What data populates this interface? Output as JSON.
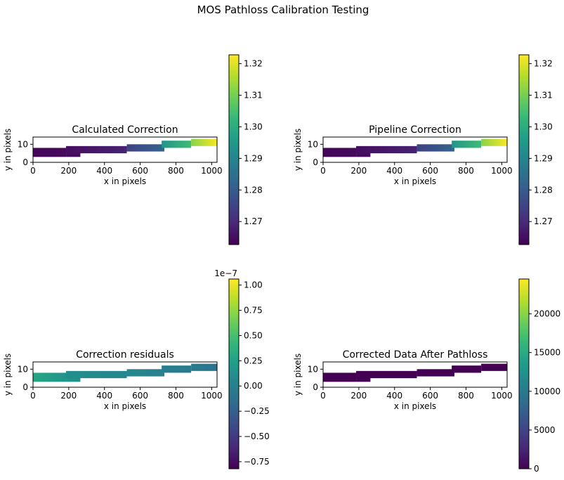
{
  "figure": {
    "suptitle": "MOS Pathloss Calibration Testing"
  },
  "colormap": {
    "name": "viridis",
    "stops": [
      "#440154",
      "#482878",
      "#3e4989",
      "#31688e",
      "#26828e",
      "#1f9e89",
      "#35b779",
      "#6ece58",
      "#b5de2b",
      "#fde725"
    ]
  },
  "chart_data": [
    {
      "type": "heatmap",
      "title": "Calculated Correction",
      "xlabel": "x in pixels",
      "ylabel": "y in pixels",
      "xlim": [
        0,
        1030
      ],
      "ylim": [
        0,
        14
      ],
      "x_ticks": [
        "0",
        "200",
        "400",
        "600",
        "800",
        "1000"
      ],
      "y_ticks": [
        "0",
        "10"
      ],
      "colorbar": {
        "min": 1.2627,
        "max": 1.3228,
        "ticks": [
          "1.27",
          "1.28",
          "1.29",
          "1.30",
          "1.31",
          "1.32"
        ],
        "tick_values": [
          1.27,
          1.28,
          1.29,
          1.3,
          1.31,
          1.32
        ],
        "offset_label": ""
      },
      "segments": [
        {
          "x": [
            0,
            185
          ],
          "y": [
            3,
            8
          ],
          "v": [
            1.2635,
            1.2642
          ]
        },
        {
          "x": [
            185,
            265
          ],
          "y": [
            3,
            8
          ],
          "v": [
            1.2642,
            1.2648
          ]
        },
        {
          "x": [
            185,
            525
          ],
          "y": [
            5,
            9
          ],
          "v": [
            1.2648,
            1.2685
          ]
        },
        {
          "x": [
            525,
            735
          ],
          "y": [
            6,
            10
          ],
          "v": [
            1.2745,
            1.282
          ]
        },
        {
          "x": [
            720,
            885
          ],
          "y": [
            8,
            12
          ],
          "v": [
            1.294,
            1.304
          ]
        },
        {
          "x": [
            885,
            1030
          ],
          "y": [
            9,
            13
          ],
          "v": [
            1.312,
            1.3225
          ]
        }
      ]
    },
    {
      "type": "heatmap",
      "title": "Pipeline Correction",
      "xlabel": "x in pixels",
      "ylabel": "y in pixels",
      "xlim": [
        0,
        1030
      ],
      "ylim": [
        0,
        14
      ],
      "x_ticks": [
        "0",
        "200",
        "400",
        "600",
        "800",
        "1000"
      ],
      "y_ticks": [
        "0",
        "10"
      ],
      "colorbar": {
        "min": 1.2627,
        "max": 1.3228,
        "ticks": [
          "1.27",
          "1.28",
          "1.29",
          "1.30",
          "1.31",
          "1.32"
        ],
        "tick_values": [
          1.27,
          1.28,
          1.29,
          1.3,
          1.31,
          1.32
        ],
        "offset_label": ""
      },
      "segments": [
        {
          "x": [
            0,
            185
          ],
          "y": [
            3,
            8
          ],
          "v": [
            1.2635,
            1.2642
          ]
        },
        {
          "x": [
            185,
            265
          ],
          "y": [
            3,
            8
          ],
          "v": [
            1.2642,
            1.2648
          ]
        },
        {
          "x": [
            185,
            525
          ],
          "y": [
            5,
            9
          ],
          "v": [
            1.2648,
            1.2685
          ]
        },
        {
          "x": [
            525,
            735
          ],
          "y": [
            6,
            10
          ],
          "v": [
            1.2745,
            1.282
          ]
        },
        {
          "x": [
            720,
            885
          ],
          "y": [
            8,
            12
          ],
          "v": [
            1.294,
            1.304
          ]
        },
        {
          "x": [
            885,
            1030
          ],
          "y": [
            9,
            13
          ],
          "v": [
            1.312,
            1.3225
          ]
        }
      ]
    },
    {
      "type": "heatmap",
      "title": "Correction residuals",
      "xlabel": "x in pixels",
      "ylabel": "y in pixels",
      "xlim": [
        0,
        1030
      ],
      "ylim": [
        0,
        14
      ],
      "x_ticks": [
        "0",
        "200",
        "400",
        "600",
        "800",
        "1000"
      ],
      "y_ticks": [
        "0",
        "10"
      ],
      "colorbar": {
        "min": -0.82,
        "max": 1.06,
        "ticks": [
          "1.00",
          "0.75",
          "0.50",
          "0.25",
          "0.00",
          "−0.25",
          "−0.50",
          "−0.75"
        ],
        "tick_values": [
          1.0,
          0.75,
          0.5,
          0.25,
          0.0,
          -0.25,
          -0.5,
          -0.75
        ],
        "offset_label": "1e−7"
      },
      "segments": [
        {
          "x": [
            0,
            185
          ],
          "y": [
            3,
            8
          ],
          "v": [
            0.3,
            0.15
          ]
        },
        {
          "x": [
            185,
            265
          ],
          "y": [
            3,
            8
          ],
          "v": [
            0.15,
            0.1
          ]
        },
        {
          "x": [
            185,
            525
          ],
          "y": [
            5,
            9
          ],
          "v": [
            0.1,
            0.05
          ]
        },
        {
          "x": [
            525,
            735
          ],
          "y": [
            6,
            10
          ],
          "v": [
            0.05,
            0.0
          ]
        },
        {
          "x": [
            720,
            885
          ],
          "y": [
            8,
            12
          ],
          "v": [
            0.0,
            -0.05
          ]
        },
        {
          "x": [
            885,
            1030
          ],
          "y": [
            9,
            13
          ],
          "v": [
            -0.05,
            -0.1
          ]
        }
      ]
    },
    {
      "type": "heatmap",
      "title": "Corrected Data After Pathloss",
      "xlabel": "x in pixels",
      "ylabel": "y in pixels",
      "xlim": [
        0,
        1030
      ],
      "ylim": [
        0,
        14
      ],
      "x_ticks": [
        "0",
        "200",
        "400",
        "600",
        "800",
        "1000"
      ],
      "y_ticks": [
        "0",
        "10"
      ],
      "colorbar": {
        "min": 0,
        "max": 24500,
        "ticks": [
          "20000",
          "15000",
          "10000",
          "5000",
          "0"
        ],
        "tick_values": [
          20000,
          15000,
          10000,
          5000,
          0
        ],
        "offset_label": ""
      },
      "segments": [
        {
          "x": [
            0,
            185
          ],
          "y": [
            3,
            8
          ],
          "v": [
            0,
            0
          ]
        },
        {
          "x": [
            185,
            265
          ],
          "y": [
            3,
            8
          ],
          "v": [
            0,
            0
          ]
        },
        {
          "x": [
            185,
            525
          ],
          "y": [
            5,
            9
          ],
          "v": [
            0,
            0
          ]
        },
        {
          "x": [
            525,
            735
          ],
          "y": [
            6,
            10
          ],
          "v": [
            0,
            0
          ]
        },
        {
          "x": [
            720,
            885
          ],
          "y": [
            8,
            12
          ],
          "v": [
            0,
            0
          ]
        },
        {
          "x": [
            885,
            1030
          ],
          "y": [
            9,
            13
          ],
          "v": [
            0,
            0
          ]
        }
      ]
    }
  ]
}
